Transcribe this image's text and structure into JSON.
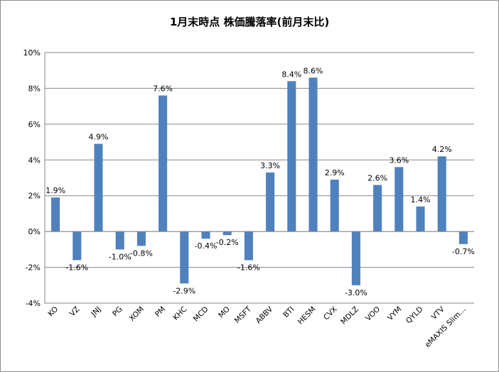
{
  "chart_data": {
    "type": "bar",
    "title": "1月末時点 株価騰落率(前月末比)",
    "xlabel": "",
    "ylabel": "",
    "ylim": [
      -4,
      10
    ],
    "yticks": [
      -4,
      -2,
      0,
      2,
      4,
      6,
      8,
      10
    ],
    "ytick_labels": [
      "-4%",
      "-2%",
      "0%",
      "2%",
      "4%",
      "6%",
      "8%",
      "10%"
    ],
    "grid": true,
    "legend": "none",
    "bar_color": "#4f81bd",
    "categories": [
      "KO",
      "VZ",
      "JNJ",
      "PG",
      "XOM",
      "PM",
      "KHC",
      "MCD",
      "MO",
      "MSFT",
      "ABBV",
      "BTI",
      "HESM",
      "CVX",
      "MDLZ",
      "VOO",
      "VYM",
      "QYLD",
      "VTV",
      "eMAXIS Slim…"
    ],
    "values": [
      1.9,
      -1.6,
      4.9,
      -1.0,
      -0.8,
      7.6,
      -2.9,
      -0.4,
      -0.2,
      -1.6,
      3.3,
      8.4,
      8.6,
      2.9,
      -3.0,
      2.6,
      3.6,
      1.4,
      4.2,
      -0.7
    ],
    "value_labels": [
      "1.9%",
      "-1.6%",
      "4.9%",
      "-1.0%",
      "-0.8%",
      "7.6%",
      "-2.9%",
      "-0.4%",
      "-0.2%",
      "-1.6%",
      "3.3%",
      "8.4%",
      "8.6%",
      "2.9%",
      "-3.0%",
      "2.6%",
      "3.6%",
      "1.4%",
      "4.2%",
      "-0.7%"
    ]
  }
}
